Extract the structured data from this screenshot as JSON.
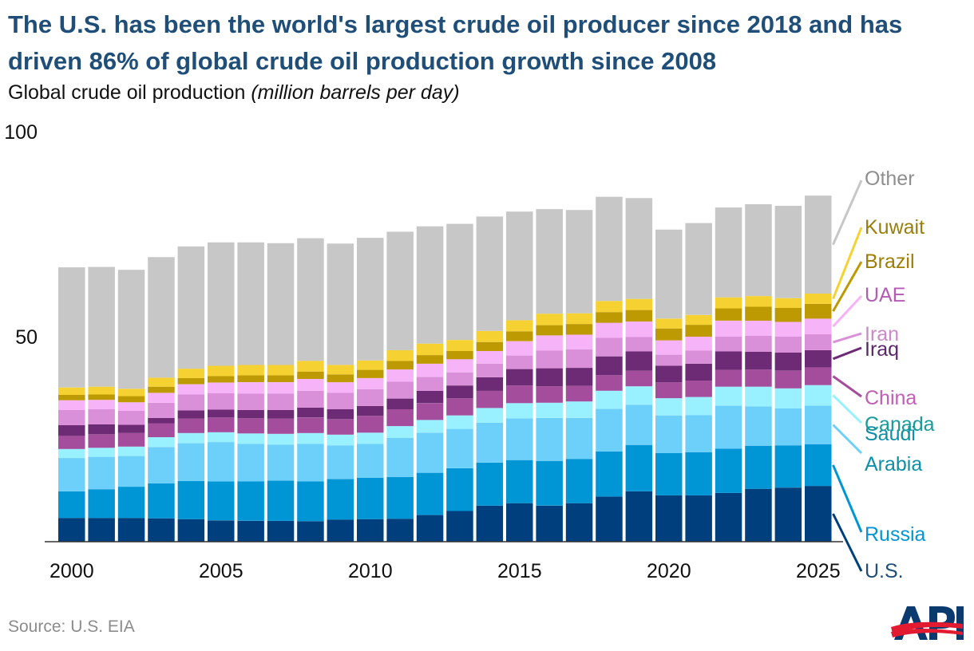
{
  "title": "The U.S. has been the world's largest crude oil producer since 2018 and has driven 86% of global crude oil production growth since 2008",
  "subtitle": "Global crude oil production",
  "subtitle_unit": "(million barrels per day)",
  "source": "Source: U.S. EIA",
  "logo_text": "API",
  "chart_data": {
    "type": "bar",
    "stacked": true,
    "title": "Global crude oil production",
    "ylabel": "million barrels per day",
    "ylim": [
      0,
      100
    ],
    "yticks": [
      "50",
      "100"
    ],
    "ytick_values": [
      50,
      100
    ],
    "xticks": [
      "2000",
      "2005",
      "2010",
      "2015",
      "2020",
      "2025"
    ],
    "xtick_values": [
      2000,
      2005,
      2010,
      2015,
      2020,
      2025
    ],
    "categories": [
      2000,
      2001,
      2002,
      2003,
      2004,
      2005,
      2006,
      2007,
      2008,
      2009,
      2010,
      2011,
      2012,
      2013,
      2014,
      2015,
      2016,
      2017,
      2018,
      2019,
      2020,
      2021,
      2022,
      2023,
      2024,
      2025
    ],
    "series": [
      {
        "name": "U.S.",
        "color": "#003f7d",
        "label_color": "#1f4e79",
        "label_lines": [
          "U.S."
        ],
        "values": [
          5.8,
          5.8,
          5.8,
          5.7,
          5.5,
          5.2,
          5.1,
          5.1,
          5.0,
          5.4,
          5.5,
          5.6,
          6.5,
          7.5,
          8.8,
          9.4,
          8.8,
          9.4,
          11.0,
          12.3,
          11.3,
          11.3,
          11.9,
          12.9,
          13.2,
          13.6
        ]
      },
      {
        "name": "Russia",
        "color": "#0096d6",
        "label_color": "#0096d6",
        "label_lines": [
          "Russia"
        ],
        "values": [
          6.5,
          7.0,
          7.6,
          8.5,
          9.3,
          9.5,
          9.6,
          9.8,
          9.7,
          9.9,
          10.1,
          10.2,
          10.3,
          10.4,
          10.5,
          10.5,
          10.9,
          10.8,
          11.0,
          11.3,
          10.3,
          10.5,
          10.8,
          10.5,
          10.3,
          10.2
        ]
      },
      {
        "name": "Saudi Arabia",
        "color": "#6dd0fa",
        "label_color": "#0e8fa8",
        "label_lines": [
          "Saudi",
          "Arabia"
        ],
        "values": [
          8.1,
          7.9,
          7.5,
          8.9,
          9.2,
          9.6,
          9.2,
          8.8,
          9.2,
          8.2,
          8.3,
          9.5,
          9.8,
          9.6,
          9.7,
          10.2,
          10.5,
          10.0,
          10.4,
          9.8,
          9.2,
          9.1,
          10.5,
          9.6,
          9.0,
          9.4
        ]
      },
      {
        "name": "Canada",
        "color": "#99f0ff",
        "label_color": "#199a9a",
        "label_lines": [
          "Canada"
        ],
        "values": [
          2.2,
          2.2,
          2.3,
          2.4,
          2.5,
          2.4,
          2.5,
          2.6,
          2.6,
          2.6,
          2.7,
          2.9,
          3.1,
          3.3,
          3.6,
          3.7,
          3.7,
          4.0,
          4.4,
          4.5,
          4.2,
          4.4,
          4.6,
          4.8,
          4.9,
          5.0
        ]
      },
      {
        "name": "China",
        "color": "#a34d9c",
        "label_color": "#bf5fb3",
        "label_lines": [
          "China"
        ],
        "values": [
          3.2,
          3.3,
          3.3,
          3.4,
          3.5,
          3.6,
          3.7,
          3.7,
          3.8,
          3.8,
          4.1,
          4.1,
          4.1,
          4.2,
          4.2,
          4.3,
          4.0,
          3.8,
          3.8,
          3.8,
          3.9,
          4.0,
          4.1,
          4.2,
          4.3,
          4.3
        ]
      },
      {
        "name": "Iraq",
        "color": "#6e2b75",
        "label_color": "#5a2868",
        "label_lines": [
          "Iraq"
        ],
        "values": [
          2.6,
          2.4,
          2.0,
          1.3,
          2.0,
          1.9,
          2.0,
          2.1,
          2.4,
          2.4,
          2.4,
          2.6,
          3.0,
          3.1,
          3.3,
          4.0,
          4.4,
          4.4,
          4.6,
          4.7,
          4.0,
          4.1,
          4.5,
          4.3,
          4.4,
          4.2
        ]
      },
      {
        "name": "Iran",
        "color": "#da8fd9",
        "label_color": "#cc88c8",
        "label_lines": [
          "Iran"
        ],
        "values": [
          3.7,
          3.7,
          3.4,
          3.7,
          3.9,
          4.0,
          4.0,
          4.0,
          4.1,
          4.0,
          4.1,
          4.1,
          3.4,
          3.2,
          3.3,
          3.3,
          4.3,
          4.5,
          4.5,
          3.5,
          2.7,
          3.2,
          3.6,
          3.9,
          3.9,
          3.9
        ]
      },
      {
        "name": "UAE",
        "color": "#f7b3f7",
        "label_color": "#b45cb4",
        "label_lines": [
          "UAE"
        ],
        "values": [
          2.4,
          2.3,
          2.1,
          2.4,
          2.5,
          2.6,
          2.8,
          2.8,
          2.9,
          2.6,
          2.7,
          3.0,
          3.2,
          3.2,
          3.1,
          3.5,
          3.7,
          3.6,
          3.7,
          3.8,
          3.5,
          3.4,
          3.9,
          3.7,
          3.6,
          3.8
        ]
      },
      {
        "name": "Brazil",
        "color": "#bd9a02",
        "label_color": "#9f7d00",
        "label_lines": [
          "Brazil"
        ],
        "values": [
          1.3,
          1.3,
          1.5,
          1.5,
          1.5,
          1.6,
          1.7,
          1.7,
          1.8,
          1.9,
          2.0,
          2.1,
          2.1,
          2.0,
          2.2,
          2.4,
          2.5,
          2.6,
          2.6,
          2.8,
          2.9,
          2.9,
          3.0,
          3.4,
          3.4,
          3.6
        ]
      },
      {
        "name": "Kuwait",
        "color": "#f5d131",
        "label_color": "#9a7e05",
        "label_lines": [
          "Kuwait"
        ],
        "values": [
          1.8,
          1.9,
          1.8,
          2.2,
          2.3,
          2.5,
          2.5,
          2.5,
          2.6,
          2.3,
          2.3,
          2.6,
          2.8,
          2.7,
          2.7,
          2.7,
          2.8,
          2.6,
          2.7,
          2.7,
          2.4,
          2.4,
          2.7,
          2.6,
          2.4,
          2.5
        ]
      },
      {
        "name": "Other",
        "color": "#c7c7c7",
        "label_color": "#8f8f8f",
        "label_lines": [
          "Other"
        ],
        "values": [
          29.3,
          29.2,
          29.0,
          29.4,
          29.8,
          30.1,
          29.9,
          29.7,
          29.9,
          29.6,
          29.9,
          28.9,
          28.6,
          28.3,
          27.9,
          26.5,
          25.5,
          25.2,
          25.4,
          24.6,
          21.7,
          22.4,
          21.9,
          22.4,
          22.5,
          23.9
        ]
      }
    ]
  }
}
